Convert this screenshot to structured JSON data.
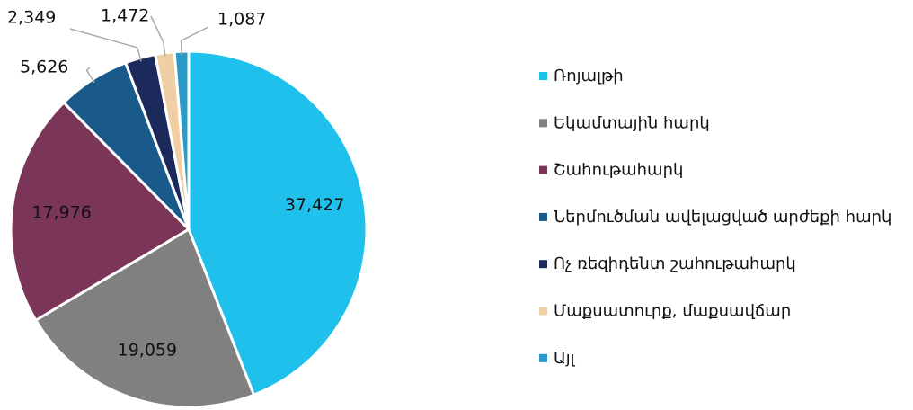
{
  "chart_data": {
    "type": "pie",
    "categories": [
      "Ռոյալթի",
      "Եկամտային հարկ",
      "Շահութահարկ",
      "Ներմուծման ավելացված արժեքի հարկ",
      "Ոչ ռեզիդենտ շահութահարկ",
      "Մաքսատուրք, մաքսավճար",
      "Այլ"
    ],
    "values": [
      37427,
      19059,
      17976,
      5626,
      2349,
      1472,
      1087
    ],
    "value_labels": [
      "37,427",
      "19,059",
      "17,976",
      "5,626",
      "2,349",
      "1,472",
      "1,087"
    ],
    "colors": [
      "#1fc0ec",
      "#808080",
      "#7b3558",
      "#1a5a8a",
      "#1b2a5a",
      "#f0cfa5",
      "#2a9bc8"
    ],
    "legend": "right"
  }
}
